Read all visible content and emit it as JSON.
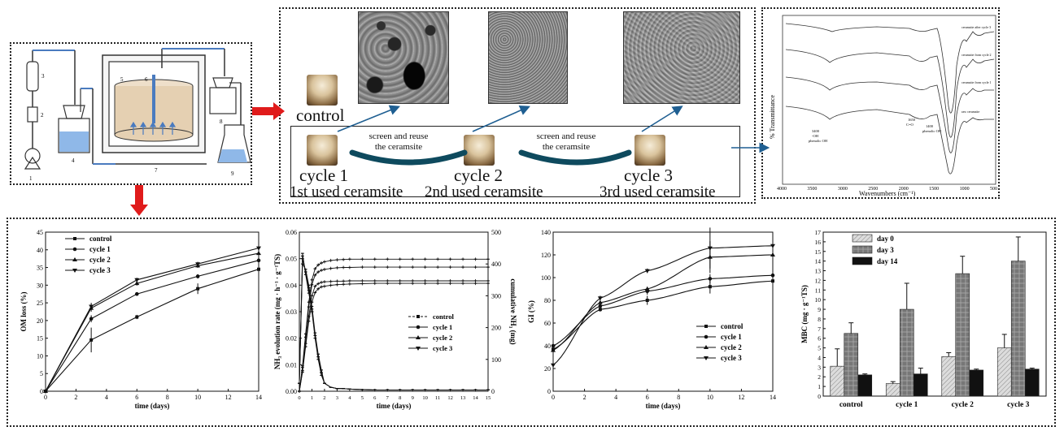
{
  "sem": {
    "control_label": "control",
    "cycles": [
      "cycle 1",
      "cycle 2",
      "cycle 3"
    ],
    "used_labels": [
      "1st used ceramsite",
      "2nd used ceramsite",
      "3rd used ceramsite"
    ],
    "reuse_text": "screen and reuse\nthe ceramsite"
  },
  "apparatus": {
    "numbers": [
      "1",
      "2",
      "3",
      "4",
      "5",
      "6",
      "7",
      "8",
      "9"
    ]
  },
  "ftir": {
    "ylabel": "% Transmittance",
    "xlabel": "Wavenumbers (cm⁻¹)",
    "xticks": [
      "4000",
      "3500",
      "3000",
      "2500",
      "2000",
      "1500",
      "1000",
      "500"
    ],
    "curve_labels": [
      "ceramsite after cycle 3",
      "ceramsite from cycle 2",
      "ceramsite from cycle 1",
      "raw ceramsite"
    ],
    "annotations": [
      "3400\n-OH\nphenolic OH",
      "1650\nC=O",
      "1400\nphenolic OH"
    ]
  },
  "chart_data": [
    {
      "type": "line",
      "xlabel": "time (days)",
      "ylabel": "OM loss (%)",
      "xlim": [
        0,
        14
      ],
      "ylim": [
        0,
        45
      ],
      "xticks": [
        0,
        2,
        4,
        6,
        8,
        10,
        12,
        14
      ],
      "yticks": [
        0,
        5,
        10,
        15,
        20,
        25,
        30,
        35,
        40,
        45
      ],
      "legend": "top-left",
      "x": [
        0,
        3,
        6,
        10,
        14
      ],
      "series": [
        {
          "name": "control",
          "values": [
            0,
            14.5,
            21,
            29,
            34.5
          ]
        },
        {
          "name": "cycle 1",
          "values": [
            0,
            20.5,
            27.5,
            32.5,
            37
          ]
        },
        {
          "name": "cycle 2",
          "values": [
            0,
            23.5,
            30.5,
            35.5,
            39
          ]
        },
        {
          "name": "cycle 3",
          "values": [
            0,
            24,
            31.5,
            36,
            40.5
          ]
        }
      ]
    },
    {
      "type": "line",
      "xlabel": "time (days)",
      "ylabel": "NH₃ evolution rate (mg · h⁻¹ · g⁻¹TS)",
      "y2label": "cumulative NH₃ (mg)",
      "xlim": [
        0,
        15
      ],
      "ylim": [
        0,
        0.06
      ],
      "y2lim": [
        0,
        500
      ],
      "xticks": [
        0,
        1,
        2,
        3,
        4,
        5,
        6,
        7,
        8,
        9,
        10,
        11,
        12,
        13,
        14,
        15
      ],
      "yticks": [
        0.0,
        0.01,
        0.02,
        0.03,
        0.04,
        0.05,
        0.06
      ],
      "y2ticks": [
        0,
        100,
        200,
        300,
        400,
        500
      ],
      "legend": "right",
      "x": [
        0,
        0.25,
        0.5,
        0.75,
        1,
        1.25,
        1.5,
        1.75,
        2,
        2.5,
        3,
        3.5,
        4,
        5,
        6,
        7,
        8,
        9,
        10,
        11,
        12,
        13,
        14,
        15
      ],
      "series": [
        {
          "name": "control",
          "axis": "left",
          "values": [
            0.003,
            0.05,
            0.045,
            0.038,
            0.03,
            0.021,
            0.013,
            0.007,
            0.003,
            0.0015,
            0.001,
            0.001,
            0.0008,
            0.0006,
            0.0005,
            0.0005,
            0.0005,
            0.0005,
            0.0005,
            0.0005,
            0.0005,
            0.0005,
            0.0005,
            0.0005
          ]
        },
        {
          "name": "cycle 1",
          "axis": "left",
          "values": [
            0.003,
            0.048,
            0.046,
            0.04,
            0.032,
            0.022,
            0.014,
            0.008,
            0.003,
            0.0015,
            0.001,
            0.001,
            0.0008,
            0.0006,
            0.0005,
            0.0005,
            0.0005,
            0.0005,
            0.0005,
            0.0005,
            0.0005,
            0.0005,
            0.0005,
            0.0005
          ]
        },
        {
          "name": "cycle 2",
          "axis": "left",
          "values": [
            0.003,
            0.052,
            0.044,
            0.037,
            0.03,
            0.02,
            0.012,
            0.006,
            0.003,
            0.0015,
            0.001,
            0.001,
            0.0008,
            0.0006,
            0.0005,
            0.0005,
            0.0005,
            0.0005,
            0.0005,
            0.0005,
            0.0005,
            0.0005,
            0.0005,
            0.0005
          ]
        },
        {
          "name": "cycle 3",
          "axis": "left",
          "values": [
            0.003,
            0.051,
            0.045,
            0.039,
            0.031,
            0.021,
            0.013,
            0.007,
            0.003,
            0.0015,
            0.001,
            0.001,
            0.0008,
            0.0006,
            0.0005,
            0.0005,
            0.0005,
            0.0005,
            0.0005,
            0.0005,
            0.0005,
            0.0005,
            0.0005,
            0.0005
          ]
        },
        {
          "name": "control",
          "axis": "right",
          "values": [
            0,
            60,
            140,
            220,
            280,
            310,
            322,
            328,
            330,
            333,
            335,
            336,
            337,
            338,
            339,
            339,
            339,
            339,
            339,
            339,
            339,
            339,
            339,
            339
          ]
        },
        {
          "name": "cycle 1",
          "axis": "right",
          "values": [
            0,
            65,
            150,
            235,
            300,
            330,
            338,
            342,
            344,
            345,
            346,
            346,
            347,
            347,
            347,
            347,
            347,
            347,
            347,
            347,
            347,
            347,
            347,
            347
          ]
        },
        {
          "name": "cycle 2",
          "axis": "right",
          "values": [
            0,
            75,
            170,
            265,
            335,
            365,
            375,
            380,
            383,
            386,
            388,
            389,
            389,
            390,
            390,
            390,
            390,
            390,
            390,
            390,
            390,
            390,
            390,
            390
          ]
        },
        {
          "name": "cycle 3",
          "axis": "right",
          "values": [
            0,
            80,
            180,
            280,
            350,
            385,
            397,
            403,
            407,
            411,
            413,
            414,
            415,
            415,
            415,
            415,
            415,
            415,
            415,
            415,
            415,
            415,
            415,
            415
          ]
        }
      ]
    },
    {
      "type": "line",
      "xlabel": "time (days)",
      "ylabel": "GI (%)",
      "xlim": [
        0,
        14
      ],
      "ylim": [
        0,
        140
      ],
      "xticks": [
        0,
        2,
        4,
        6,
        8,
        10,
        12,
        14
      ],
      "yticks": [
        0,
        20,
        40,
        60,
        80,
        100,
        120,
        140
      ],
      "legend": "bottom-right",
      "x": [
        0,
        3,
        6,
        10,
        14
      ],
      "series": [
        {
          "name": "control",
          "values": [
            37,
            72,
            80,
            92,
            97
          ]
        },
        {
          "name": "cycle 1",
          "values": [
            40,
            75,
            88,
            99,
            102
          ]
        },
        {
          "name": "cycle 2",
          "values": [
            36,
            78,
            90,
            118,
            120
          ]
        },
        {
          "name": "cycle 3",
          "values": [
            23,
            82,
            106,
            126,
            128
          ]
        }
      ]
    },
    {
      "type": "bar",
      "ylabel": "MBC (mg · g⁻¹TS)",
      "categories": [
        "control",
        "cycle 1",
        "cycle 2",
        "cycle 3"
      ],
      "ylim": [
        0,
        17
      ],
      "yticks": [
        0,
        1,
        2,
        3,
        4,
        5,
        6,
        7,
        8,
        9,
        10,
        11,
        12,
        13,
        14,
        15,
        16,
        17
      ],
      "legend": "top-left",
      "series": [
        {
          "name": "day 0",
          "values": [
            3.1,
            1.3,
            4.1,
            5.0
          ],
          "errors": [
            1.8,
            0.2,
            0.4,
            1.4
          ],
          "color": "#dcdcdc"
        },
        {
          "name": "day 3",
          "values": [
            6.5,
            9.0,
            12.7,
            14.0
          ],
          "errors": [
            1.1,
            2.7,
            1.8,
            2.5
          ],
          "color": "#777777"
        },
        {
          "name": "day 14",
          "values": [
            2.2,
            2.3,
            2.7,
            2.8
          ],
          "errors": [
            0.1,
            0.6,
            0.1,
            0.1
          ],
          "color": "#111111"
        }
      ]
    }
  ]
}
